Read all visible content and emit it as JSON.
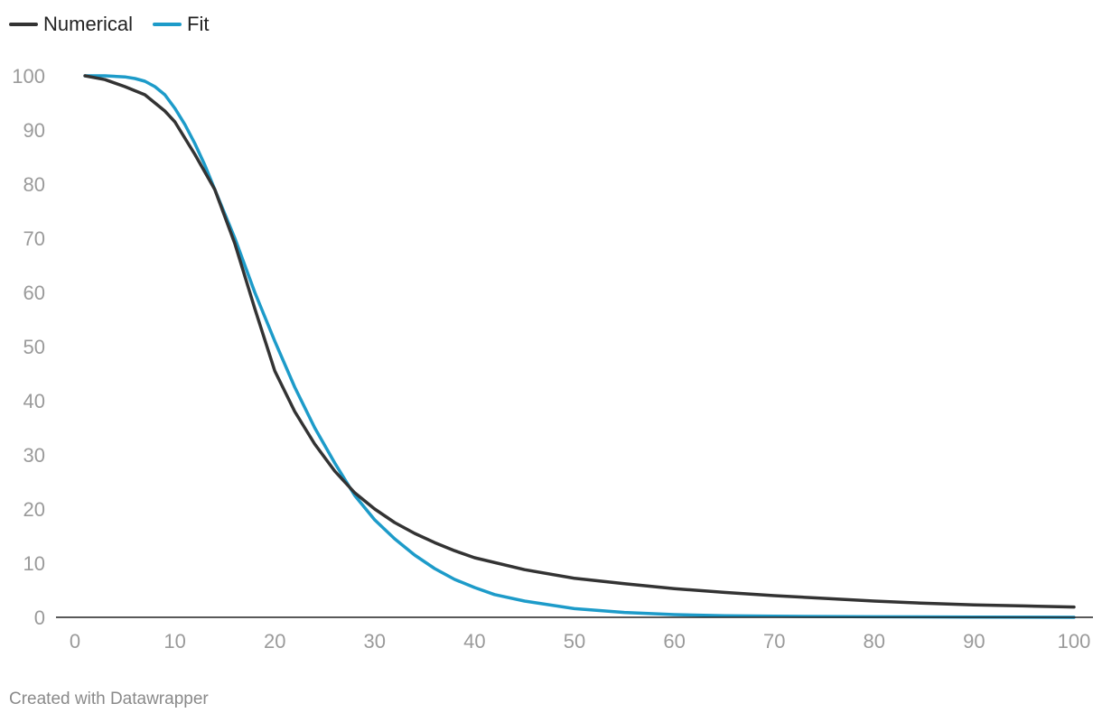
{
  "legend": [
    {
      "name": "Numerical",
      "color": "#333333"
    },
    {
      "name": "Fit",
      "color": "#1d9bc9"
    }
  ],
  "footer": {
    "credit": "Created with Datawrapper"
  },
  "chart_data": {
    "type": "line",
    "title": "",
    "xlabel": "",
    "ylabel": "",
    "xlim": [
      0,
      100
    ],
    "ylim": [
      0,
      100
    ],
    "x_ticks": [
      0,
      10,
      20,
      30,
      40,
      50,
      60,
      70,
      80,
      90,
      100
    ],
    "y_ticks": [
      0,
      10,
      20,
      30,
      40,
      50,
      60,
      70,
      80,
      90,
      100
    ],
    "grid": false,
    "legend_position": "top-left",
    "series": [
      {
        "name": "Numerical",
        "color": "#333333",
        "x": [
          1,
          3,
          5,
          7,
          9,
          10,
          12,
          14,
          16,
          18,
          20,
          22,
          24,
          26,
          28,
          30,
          32,
          34,
          36,
          38,
          40,
          45,
          50,
          55,
          60,
          65,
          70,
          75,
          80,
          85,
          90,
          95,
          100
        ],
        "y": [
          100,
          99.3,
          98,
          96.5,
          93.5,
          91.5,
          85.5,
          79,
          69,
          57,
          45.5,
          38,
          32,
          27,
          23,
          20,
          17.5,
          15.5,
          13.8,
          12.3,
          11,
          8.8,
          7.2,
          6.2,
          5.3,
          4.6,
          4,
          3.5,
          3,
          2.6,
          2.3,
          2.1,
          1.9
        ]
      },
      {
        "name": "Fit",
        "color": "#1d9bc9",
        "x": [
          1,
          3,
          5,
          6,
          7,
          8,
          9,
          10,
          11,
          12,
          13,
          14,
          16,
          18,
          20,
          22,
          24,
          26,
          28,
          30,
          32,
          34,
          36,
          38,
          40,
          42,
          45,
          50,
          55,
          60,
          65,
          70,
          80,
          90,
          100
        ],
        "y": [
          100,
          100,
          99.8,
          99.5,
          99,
          98,
          96.5,
          94,
          91,
          87.5,
          83.5,
          79,
          70,
          60,
          51,
          42.5,
          35,
          28.5,
          22.5,
          18,
          14.5,
          11.5,
          9,
          7,
          5.5,
          4.2,
          3,
          1.6,
          0.9,
          0.5,
          0.3,
          0.2,
          0.1,
          0.05,
          0
        ]
      }
    ]
  }
}
